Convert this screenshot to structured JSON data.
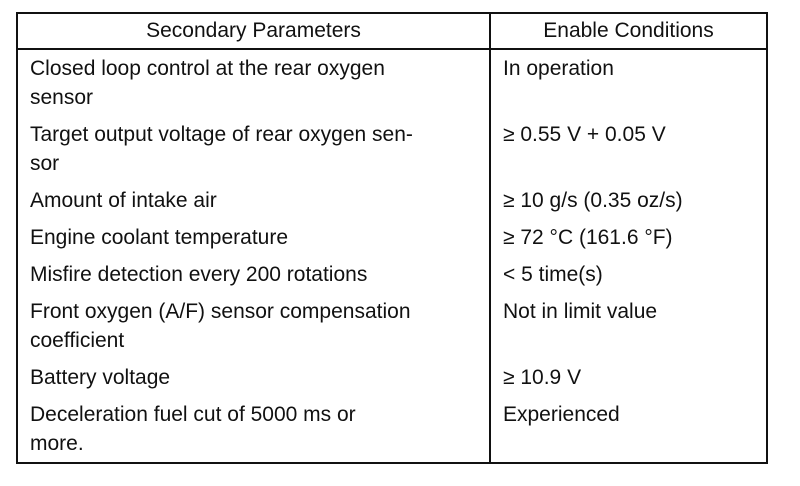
{
  "table": {
    "header": [
      "Secondary Parameters",
      "Enable Conditions"
    ],
    "rows": [
      [
        "Closed loop control at the rear oxygen\nsensor",
        "In operation"
      ],
      [
        "Target output voltage of rear oxygen sen-\nsor",
        "≥ 0.55 V + 0.05 V"
      ],
      [
        "Amount of intake air",
        "≥ 10 g/s (0.35 oz/s)"
      ],
      [
        "Engine coolant temperature",
        "≥ 72 °C (161.6 °F)"
      ],
      [
        "Misfire detection every 200 rotations",
        "< 5 time(s)"
      ],
      [
        "Front oxygen (A/F) sensor compensation\ncoefficient",
        "Not in limit value"
      ],
      [
        "Battery voltage",
        "≥ 10.9 V"
      ],
      [
        "Deceleration fuel cut of 5000 ms or\nmore.",
        "Experienced"
      ]
    ]
  }
}
